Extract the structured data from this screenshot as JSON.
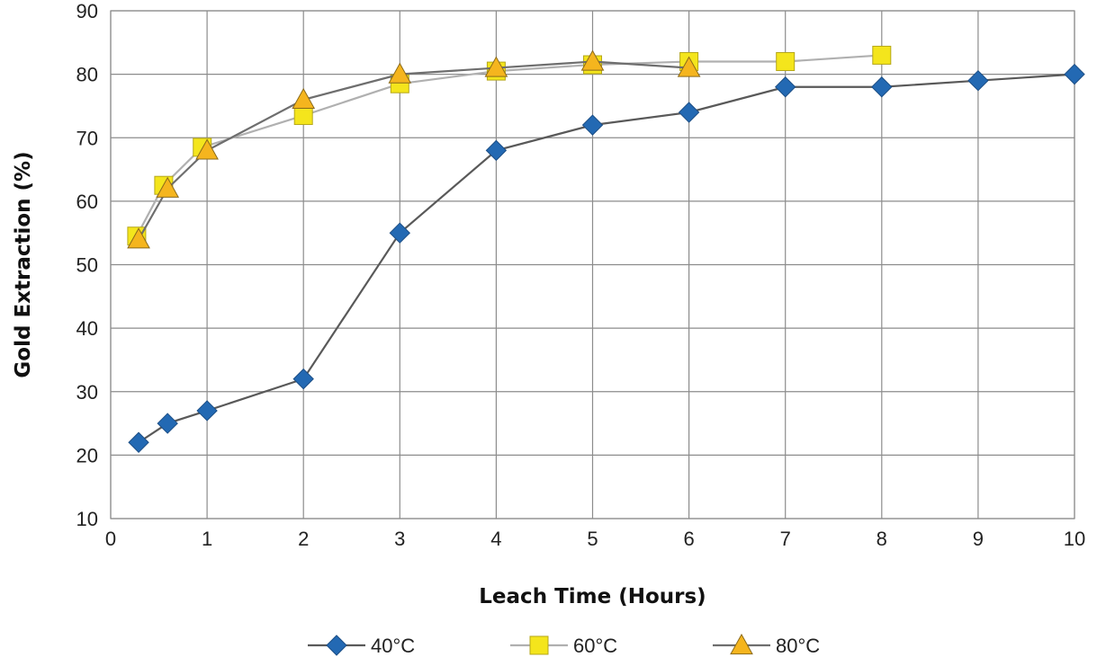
{
  "chart_data": {
    "type": "line",
    "xlabel": "Leach Time (Hours)",
    "ylabel": "Gold Extraction (%)",
    "xlim": [
      0,
      10
    ],
    "ylim": [
      10,
      90
    ],
    "xticks": [
      0,
      1,
      2,
      3,
      4,
      5,
      6,
      7,
      8,
      9,
      10
    ],
    "yticks": [
      10,
      20,
      30,
      40,
      50,
      60,
      70,
      80,
      90
    ],
    "grid": true,
    "legend_position": "bottom",
    "series": [
      {
        "name": "40°C",
        "marker": "diamond",
        "line_color": "#595959",
        "marker_color": "#2369b3",
        "points": [
          [
            0.29,
            22
          ],
          [
            0.59,
            25
          ],
          [
            1,
            27
          ],
          [
            2,
            32
          ],
          [
            3,
            55
          ],
          [
            4,
            68
          ],
          [
            5,
            72
          ],
          [
            6,
            74
          ],
          [
            7,
            78
          ],
          [
            8,
            78
          ],
          [
            9,
            79
          ],
          [
            10,
            80
          ]
        ]
      },
      {
        "name": "60°C",
        "marker": "square",
        "line_color": "#b0b0b0",
        "marker_color": "#f4e51c",
        "points": [
          [
            0.27,
            54.5
          ],
          [
            0.55,
            62.5
          ],
          [
            0.95,
            68.5
          ],
          [
            2,
            73.5
          ],
          [
            3,
            78.5
          ],
          [
            4,
            80.5
          ],
          [
            5,
            81.5
          ],
          [
            6,
            82
          ],
          [
            7,
            82
          ],
          [
            8,
            83
          ]
        ]
      },
      {
        "name": "80°C",
        "marker": "triangle",
        "line_color": "#6e6e6e",
        "marker_color": "#f5b51e",
        "points": [
          [
            0.29,
            54
          ],
          [
            0.59,
            62
          ],
          [
            1,
            68
          ],
          [
            2,
            76
          ],
          [
            3,
            80
          ],
          [
            4,
            81
          ],
          [
            5,
            82
          ],
          [
            6,
            81
          ]
        ]
      }
    ]
  }
}
